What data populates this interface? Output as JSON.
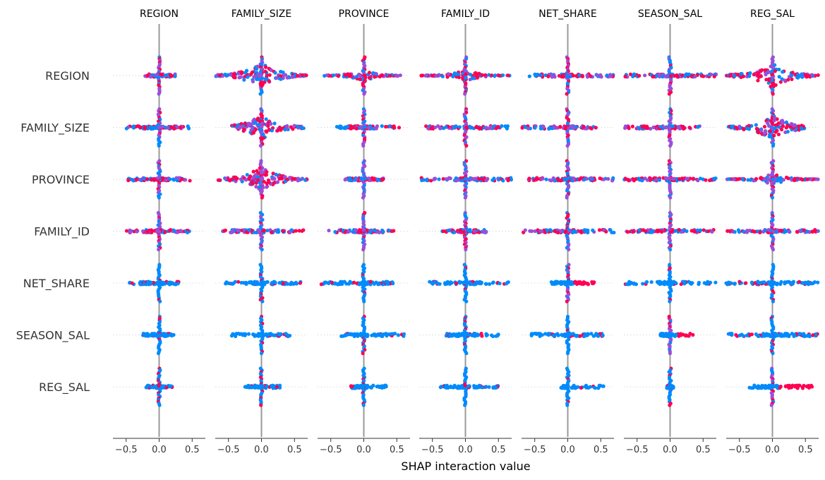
{
  "chart_data": {
    "type": "scatter",
    "variant": "shap-interaction-beeswarm-grid",
    "features": [
      "REGION",
      "FAMILY_SIZE",
      "PROVINCE",
      "FAMILY_ID",
      "NET_SHARE",
      "SEASON_SAL",
      "REG_SAL"
    ],
    "xlabel": "SHAP interaction value",
    "xlim": [
      -0.7,
      0.7
    ],
    "xticks": [
      -0.5,
      0.0,
      0.5
    ],
    "xtick_labels": [
      "−0.5",
      "0.0",
      "0.5"
    ],
    "colors": {
      "low": "#008bfb",
      "high": "#ff0052",
      "mix": "#9b4fd8",
      "zero_line": "#999999"
    },
    "cells": {
      "REGION": {
        "REGION": [
          -0.22,
          0.25,
          0.3
        ],
        "FAMILY_SIZE": [
          -0.7,
          0.7,
          1.0
        ],
        "PROVINCE": [
          -0.6,
          0.6,
          0.65
        ],
        "FAMILY_ID": [
          -0.7,
          0.7,
          0.65
        ],
        "NET_SHARE": [
          -0.6,
          0.7,
          0.6
        ],
        "SEASON_SAL": [
          -0.7,
          0.7,
          0.6
        ],
        "REG_SAL": [
          -0.7,
          0.7,
          0.95
        ]
      },
      "FAMILY_SIZE": {
        "REGION": [
          -0.5,
          0.45,
          0.45
        ],
        "FAMILY_SIZE": [
          -0.45,
          0.65,
          0.85
        ],
        "PROVINCE": [
          -0.45,
          0.55,
          0.45
        ],
        "FAMILY_ID": [
          -0.6,
          0.7,
          0.45
        ],
        "NET_SHARE": [
          -0.7,
          0.45,
          0.45
        ],
        "SEASON_SAL": [
          -0.7,
          0.45,
          0.45
        ],
        "REG_SAL": [
          -0.7,
          0.5,
          0.9
        ]
      },
      "PROVINCE": {
        "REGION": [
          -0.5,
          0.5,
          0.45
        ],
        "FAMILY_SIZE": [
          -0.7,
          0.7,
          1.0
        ],
        "PROVINCE": [
          -0.3,
          0.3,
          0.4
        ],
        "FAMILY_ID": [
          -0.7,
          0.7,
          0.55
        ],
        "NET_SHARE": [
          -0.6,
          0.7,
          0.5
        ],
        "SEASON_SAL": [
          -0.7,
          0.7,
          0.6
        ],
        "REG_SAL": [
          -0.7,
          0.7,
          0.7
        ]
      },
      "FAMILY_ID": {
        "REGION": [
          -0.5,
          0.5,
          0.45
        ],
        "FAMILY_SIZE": [
          -0.6,
          0.7,
          0.45
        ],
        "PROVINCE": [
          -0.55,
          0.5,
          0.45
        ],
        "FAMILY_ID": [
          -0.35,
          0.35,
          0.4
        ],
        "NET_SHARE": [
          -0.7,
          0.7,
          0.5
        ],
        "SEASON_SAL": [
          -0.7,
          0.7,
          0.55
        ],
        "REG_SAL": [
          -0.7,
          0.7,
          0.6
        ]
      },
      "NET_SHARE": {
        "REGION": [
          -0.45,
          0.3,
          0.4
        ],
        "FAMILY_SIZE": [
          -0.55,
          0.6,
          0.4
        ],
        "PROVINCE": [
          -0.65,
          0.5,
          0.4
        ],
        "FAMILY_ID": [
          -0.55,
          0.65,
          0.4
        ],
        "NET_SHARE": [
          -0.25,
          0.4,
          0.35
        ],
        "SEASON_SAL": [
          -0.7,
          0.7,
          0.4
        ],
        "REG_SAL": [
          -0.7,
          0.7,
          0.6
        ]
      },
      "SEASON_SAL": {
        "REGION": [
          -0.25,
          0.25,
          0.35
        ],
        "FAMILY_SIZE": [
          -0.45,
          0.45,
          0.35
        ],
        "PROVINCE": [
          -0.35,
          0.65,
          0.35
        ],
        "FAMILY_ID": [
          -0.3,
          0.5,
          0.35
        ],
        "NET_SHARE": [
          -0.55,
          0.55,
          0.35
        ],
        "SEASON_SAL": [
          -0.15,
          0.35,
          0.35
        ],
        "REG_SAL": [
          -0.7,
          0.7,
          0.6
        ]
      },
      "REG_SAL": {
        "REGION": [
          -0.2,
          0.2,
          0.3
        ],
        "FAMILY_SIZE": [
          -0.25,
          0.3,
          0.3
        ],
        "PROVINCE": [
          -0.2,
          0.35,
          0.3
        ],
        "FAMILY_ID": [
          -0.4,
          0.5,
          0.3
        ],
        "NET_SHARE": [
          -0.1,
          0.55,
          0.3
        ],
        "SEASON_SAL": [
          -0.05,
          0.05,
          0.3
        ],
        "REG_SAL": [
          -0.35,
          0.6,
          0.4
        ]
      }
    },
    "grid": false
  }
}
